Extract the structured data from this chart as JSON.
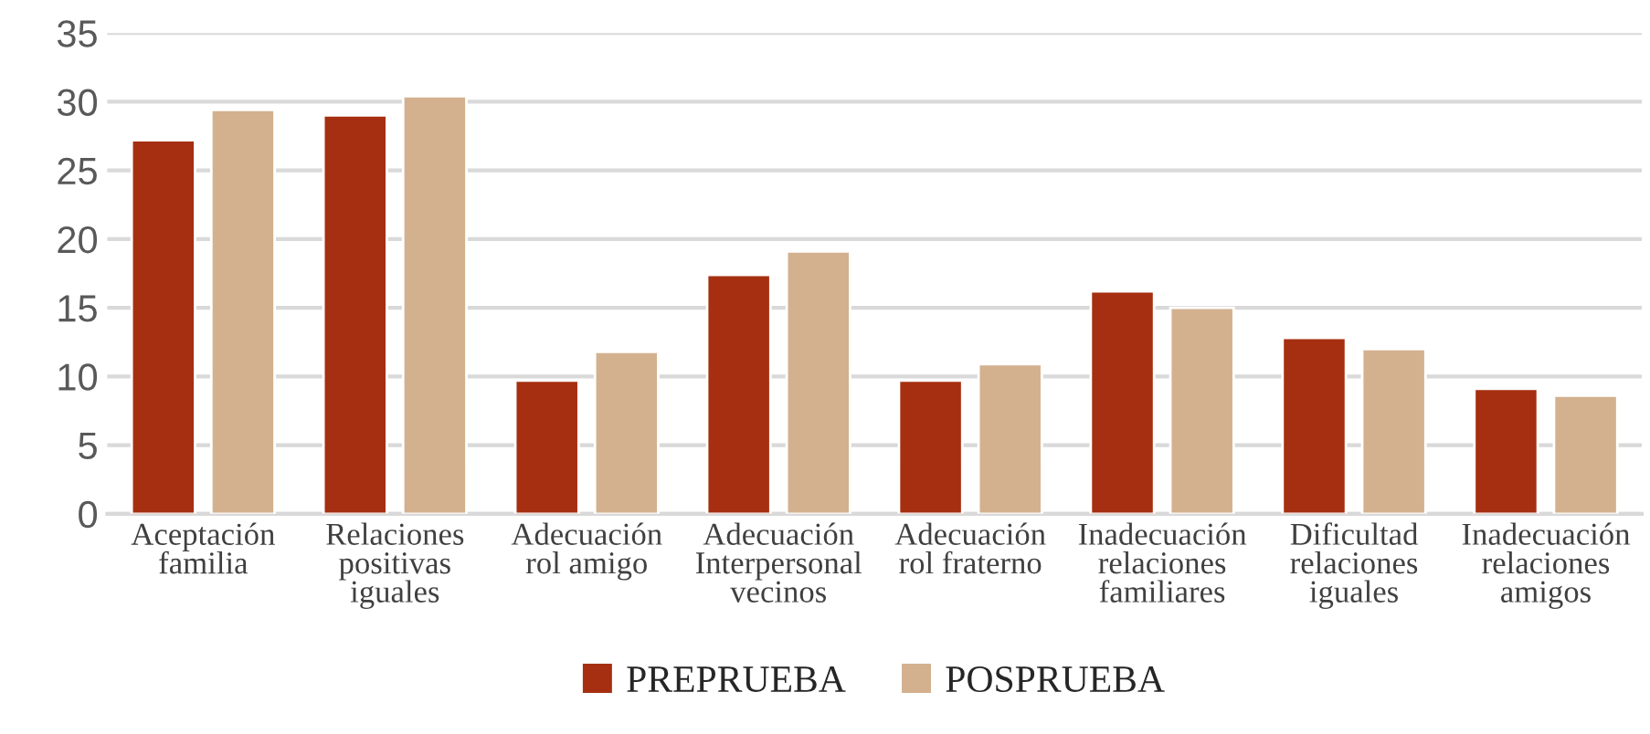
{
  "chart_data": {
    "type": "bar",
    "categories": [
      "Aceptación\nfamilia",
      "Relaciones\npositivas\niguales",
      "Adecuación\nrol amigo",
      "Adecuación\nInterpersonal\nvecinos",
      "Adecuación\nrol fraterno",
      "Inadecuación\nrelaciones\nfamiliares",
      "Dificultad\nrelaciones\niguales",
      "Inadecuación\nrelaciones\namigos"
    ],
    "series": [
      {
        "name": "PREPRUEBA",
        "color": "#a52f10",
        "values": [
          27.2,
          29.0,
          9.7,
          17.4,
          9.7,
          16.2,
          12.8,
          9.1
        ]
      },
      {
        "name": "POSPRUEBA",
        "color": "#d3b18f",
        "values": [
          29.4,
          30.4,
          11.8,
          19.1,
          10.9,
          15.0,
          12.0,
          8.6
        ]
      }
    ],
    "ylim": [
      0,
      35
    ],
    "yticks": [
      0,
      5,
      10,
      15,
      20,
      25,
      30,
      35
    ],
    "grid": "y",
    "legend": "bottom"
  }
}
